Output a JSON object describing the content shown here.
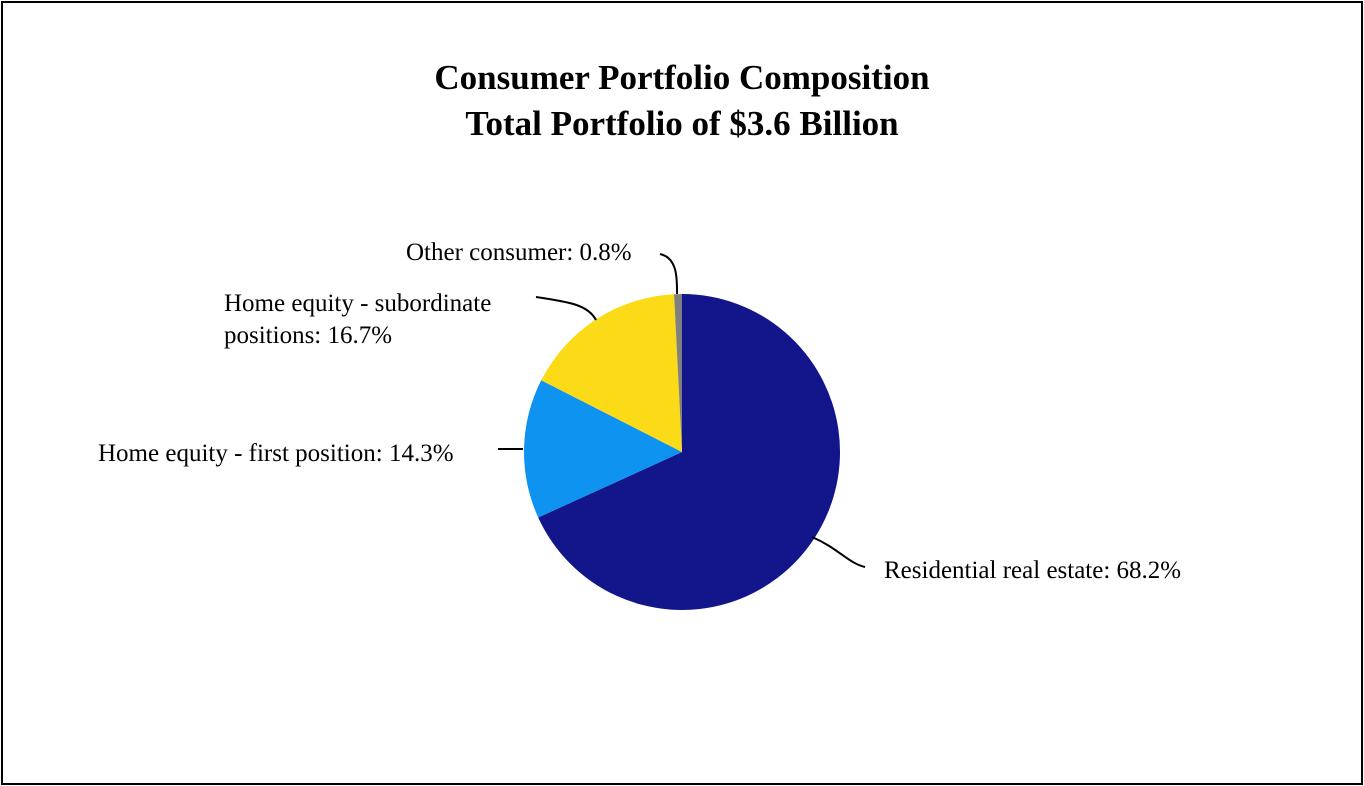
{
  "chart_data": {
    "type": "pie",
    "title": "Consumer Portfolio Composition",
    "subtitle": "Total Portfolio of $3.6 Billion",
    "slices": [
      {
        "label": "Residential real estate: 68.2%",
        "value": 68.2,
        "color": "#13168a"
      },
      {
        "label": "Home equity - first position: 14.3%",
        "value": 14.3,
        "color": "#0f93f0"
      },
      {
        "label_lines": [
          "Home equity - subordinate",
          "positions: 16.7%"
        ],
        "value": 16.7,
        "color": "#fbdb17"
      },
      {
        "label": "Other consumer: 0.8%",
        "value": 0.8,
        "color": "#808080"
      }
    ]
  }
}
